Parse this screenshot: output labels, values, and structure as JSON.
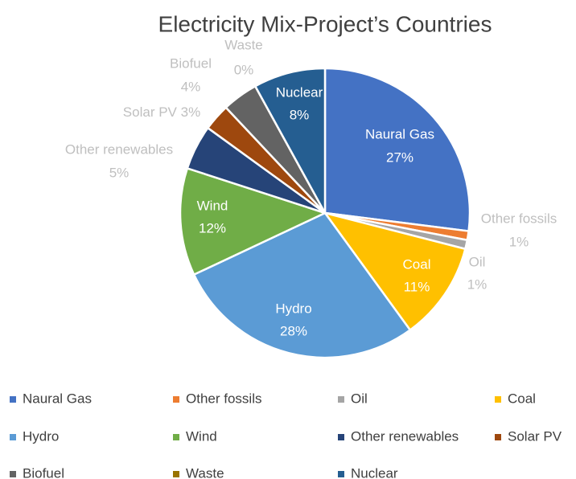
{
  "chart_data": {
    "type": "pie",
    "title": "Electricity Mix-Project’s Countries",
    "categories": [
      "Naural Gas",
      "Other fossils",
      "Oil",
      "Coal",
      "Hydro",
      "Wind",
      "Other renewables",
      "Solar PV",
      "Biofuel",
      "Waste",
      "Nuclear"
    ],
    "values": [
      27,
      1,
      1,
      11,
      28,
      12,
      5,
      3,
      4,
      0,
      8
    ],
    "value_labels": [
      "27%",
      "1%",
      "1%",
      "11%",
      "28%",
      "12%",
      "5%",
      "3%",
      "4%",
      "0%",
      "8%"
    ],
    "colors": [
      "#4472c4",
      "#ed7d31",
      "#a5a5a5",
      "#ffc000",
      "#5b9bd5",
      "#70ad47",
      "#264478",
      "#9e480e",
      "#636363",
      "#997300",
      "#255e91"
    ]
  }
}
